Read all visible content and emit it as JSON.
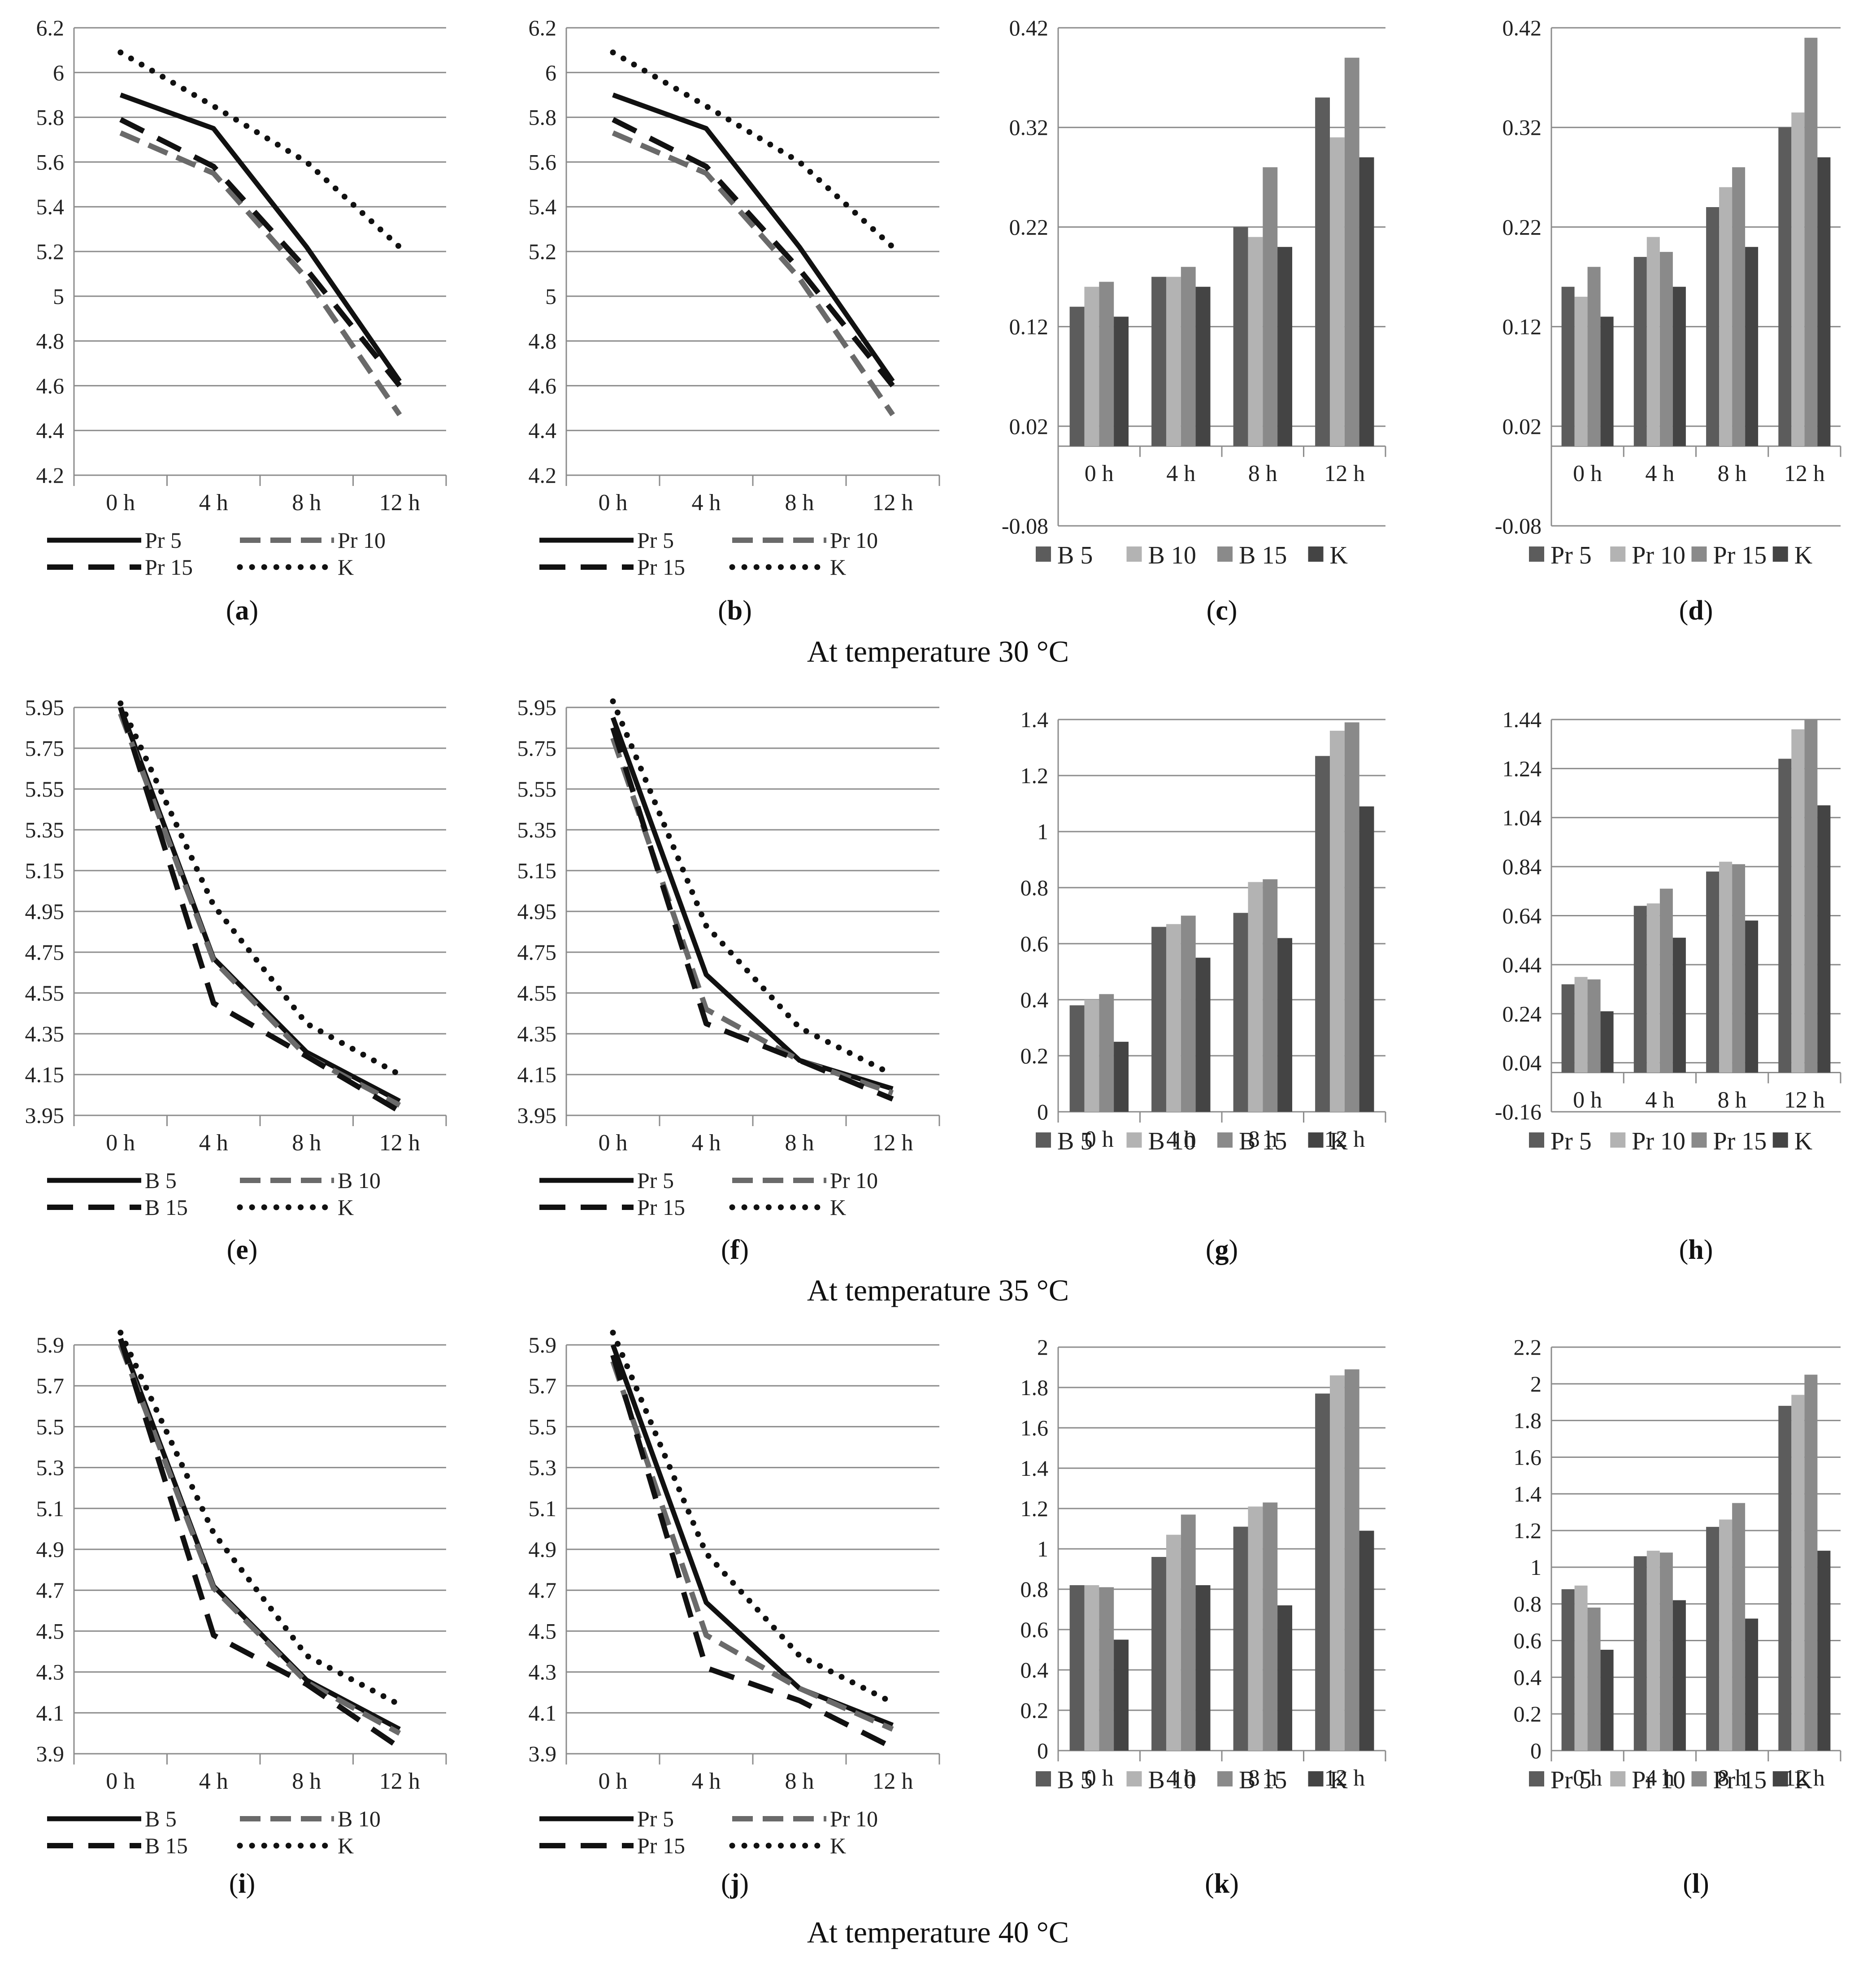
{
  "temperatures": [
    "At temperature 30 °C",
    "At temperature 35 °C",
    "At temperature 40 °C"
  ],
  "chart_data": [
    {
      "id": "a",
      "panel_label": "a",
      "type": "line",
      "categories": [
        "0 h",
        "4 h",
        "8 h",
        "12 h"
      ],
      "ylim": [
        4.2,
        6.2
      ],
      "yticks": [
        4.2,
        4.4,
        4.6,
        4.8,
        5,
        5.2,
        5.4,
        5.6,
        5.8,
        6,
        6.2
      ],
      "series": [
        {
          "name": "Pr 5",
          "style": "solid",
          "values": [
            5.9,
            5.75,
            5.22,
            4.62
          ]
        },
        {
          "name": "Pr 10",
          "style": "dashgray",
          "values": [
            5.73,
            5.55,
            5.08,
            4.47
          ]
        },
        {
          "name": "Pr 15",
          "style": "dash",
          "values": [
            5.79,
            5.58,
            5.12,
            4.6
          ]
        },
        {
          "name": "K",
          "style": "dot",
          "values": [
            6.09,
            5.85,
            5.6,
            5.22
          ]
        }
      ]
    },
    {
      "id": "b",
      "panel_label": "b",
      "type": "line",
      "categories": [
        "0 h",
        "4 h",
        "8 h",
        "12 h"
      ],
      "ylim": [
        4.2,
        6.2
      ],
      "yticks": [
        4.2,
        4.4,
        4.6,
        4.8,
        5,
        5.2,
        5.4,
        5.6,
        5.8,
        6,
        6.2
      ],
      "series": [
        {
          "name": "Pr 5",
          "style": "solid",
          "values": [
            5.9,
            5.75,
            5.22,
            4.62
          ]
        },
        {
          "name": "Pr 10",
          "style": "dashgray",
          "values": [
            5.73,
            5.55,
            5.08,
            4.47
          ]
        },
        {
          "name": "Pr 15",
          "style": "dash",
          "values": [
            5.79,
            5.58,
            5.12,
            4.6
          ]
        },
        {
          "name": "K",
          "style": "dot",
          "values": [
            6.09,
            5.85,
            5.6,
            5.22
          ]
        }
      ]
    },
    {
      "id": "c",
      "panel_label": "c",
      "type": "bar",
      "categories": [
        "0 h",
        "4 h",
        "8 h",
        "12 h"
      ],
      "ylim": [
        -0.08,
        0.42
      ],
      "yticks": [
        -0.08,
        0.02,
        0.12,
        0.22,
        0.32,
        0.42
      ],
      "series": [
        {
          "name": "B 5",
          "values": [
            0.14,
            0.17,
            0.22,
            0.35
          ]
        },
        {
          "name": "B 10",
          "values": [
            0.16,
            0.17,
            0.21,
            0.31
          ]
        },
        {
          "name": "B 15",
          "values": [
            0.165,
            0.18,
            0.28,
            0.39
          ]
        },
        {
          "name": "K",
          "values": [
            0.13,
            0.16,
            0.2,
            0.29
          ]
        }
      ]
    },
    {
      "id": "d",
      "panel_label": "d",
      "type": "bar",
      "categories": [
        "0 h",
        "4 h",
        "8 h",
        "12 h"
      ],
      "ylim": [
        -0.08,
        0.42
      ],
      "yticks": [
        -0.08,
        0.02,
        0.12,
        0.22,
        0.32,
        0.42
      ],
      "series": [
        {
          "name": "Pr 5",
          "values": [
            0.16,
            0.19,
            0.24,
            0.32
          ]
        },
        {
          "name": "Pr 10",
          "values": [
            0.15,
            0.21,
            0.26,
            0.335
          ]
        },
        {
          "name": "Pr 15",
          "values": [
            0.18,
            0.195,
            0.28,
            0.41
          ]
        },
        {
          "name": "K",
          "values": [
            0.13,
            0.16,
            0.2,
            0.29
          ]
        }
      ]
    },
    {
      "id": "e",
      "panel_label": "e",
      "type": "line",
      "categories": [
        "0 h",
        "4 h",
        "8 h",
        "12 h"
      ],
      "ylim": [
        3.95,
        5.95
      ],
      "yticks": [
        3.95,
        4.15,
        4.35,
        4.55,
        4.75,
        4.95,
        5.15,
        5.35,
        5.55,
        5.75,
        5.95
      ],
      "series": [
        {
          "name": "B 5",
          "style": "solid",
          "values": [
            5.95,
            4.72,
            4.26,
            4.02
          ]
        },
        {
          "name": "B 10",
          "style": "dashgray",
          "values": [
            5.92,
            4.71,
            4.24,
            4.0
          ]
        },
        {
          "name": "B 15",
          "style": "dash",
          "values": [
            5.95,
            4.5,
            4.24,
            3.97
          ]
        },
        {
          "name": "K",
          "style": "dot",
          "values": [
            5.97,
            4.98,
            4.4,
            4.15
          ]
        }
      ]
    },
    {
      "id": "f",
      "panel_label": "f",
      "type": "line",
      "categories": [
        "0 h",
        "4 h",
        "8 h",
        "12 h"
      ],
      "ylim": [
        3.95,
        5.95
      ],
      "yticks": [
        3.95,
        4.15,
        4.35,
        4.55,
        4.75,
        4.95,
        5.15,
        5.35,
        5.55,
        5.75,
        5.95
      ],
      "series": [
        {
          "name": "Pr 5",
          "style": "solid",
          "values": [
            5.9,
            4.64,
            4.22,
            4.08
          ]
        },
        {
          "name": "Pr 10",
          "style": "dashgray",
          "values": [
            5.8,
            4.47,
            4.22,
            4.06
          ]
        },
        {
          "name": "Pr 15",
          "style": "dash",
          "values": [
            5.85,
            4.4,
            4.22,
            4.03
          ]
        },
        {
          "name": "K",
          "style": "dot",
          "values": [
            5.98,
            4.88,
            4.38,
            4.15
          ]
        }
      ]
    },
    {
      "id": "g",
      "panel_label": "g",
      "type": "bar",
      "categories": [
        "0 h",
        "4 h",
        "8 h",
        "12 h"
      ],
      "ylim": [
        0,
        1.4
      ],
      "yticks": [
        0,
        0.2,
        0.4,
        0.6,
        0.8,
        1,
        1.2,
        1.4
      ],
      "series": [
        {
          "name": "B 5",
          "values": [
            0.38,
            0.66,
            0.71,
            1.27
          ]
        },
        {
          "name": "B 10",
          "values": [
            0.4,
            0.67,
            0.82,
            1.36
          ]
        },
        {
          "name": "B 15",
          "values": [
            0.42,
            0.7,
            0.83,
            1.39
          ]
        },
        {
          "name": "K",
          "values": [
            0.25,
            0.55,
            0.62,
            1.09
          ]
        }
      ]
    },
    {
      "id": "h",
      "panel_label": "h",
      "type": "bar",
      "categories": [
        "0 h",
        "4 h",
        "8 h",
        "12 h"
      ],
      "ylim": [
        -0.16,
        1.44
      ],
      "yticks": [
        -0.16,
        0.04,
        0.24,
        0.44,
        0.64,
        0.84,
        1.04,
        1.24,
        1.44
      ],
      "series": [
        {
          "name": "Pr 5",
          "values": [
            0.36,
            0.68,
            0.82,
            1.28
          ]
        },
        {
          "name": "Pr 10",
          "values": [
            0.39,
            0.69,
            0.86,
            1.4
          ]
        },
        {
          "name": "Pr 15",
          "values": [
            0.38,
            0.75,
            0.85,
            1.44
          ]
        },
        {
          "name": "K",
          "values": [
            0.25,
            0.55,
            0.62,
            1.09
          ]
        }
      ]
    },
    {
      "id": "i",
      "panel_label": "i",
      "type": "line",
      "categories": [
        "0 h",
        "4 h",
        "8 h",
        "12 h"
      ],
      "ylim": [
        3.9,
        5.9
      ],
      "yticks": [
        3.9,
        4.1,
        4.3,
        4.5,
        4.7,
        4.9,
        5.1,
        5.3,
        5.5,
        5.7,
        5.9
      ],
      "series": [
        {
          "name": "B 5",
          "style": "solid",
          "values": [
            5.93,
            4.72,
            4.26,
            4.02
          ]
        },
        {
          "name": "B 10",
          "style": "dashgray",
          "values": [
            5.9,
            4.71,
            4.25,
            4.0
          ]
        },
        {
          "name": "B 15",
          "style": "dash",
          "values": [
            5.93,
            4.48,
            4.24,
            3.93
          ]
        },
        {
          "name": "K",
          "style": "dot",
          "values": [
            5.96,
            4.98,
            4.38,
            4.14
          ]
        }
      ]
    },
    {
      "id": "j",
      "panel_label": "j",
      "type": "line",
      "categories": [
        "0 h",
        "4 h",
        "8 h",
        "12 h"
      ],
      "ylim": [
        3.9,
        5.9
      ],
      "yticks": [
        3.9,
        4.1,
        4.3,
        4.5,
        4.7,
        4.9,
        5.1,
        5.3,
        5.5,
        5.7,
        5.9
      ],
      "series": [
        {
          "name": "Pr 5",
          "style": "solid",
          "values": [
            5.9,
            4.64,
            4.22,
            4.04
          ]
        },
        {
          "name": "Pr 10",
          "style": "dashgray",
          "values": [
            5.82,
            4.48,
            4.22,
            4.02
          ]
        },
        {
          "name": "Pr 15",
          "style": "dash",
          "values": [
            5.85,
            4.32,
            4.16,
            3.93
          ]
        },
        {
          "name": "K",
          "style": "dot",
          "values": [
            5.96,
            4.88,
            4.38,
            4.15
          ]
        }
      ]
    },
    {
      "id": "k",
      "panel_label": "k",
      "type": "bar",
      "categories": [
        "0 h",
        "4 h",
        "8 h",
        "12 h"
      ],
      "ylim": [
        0,
        2
      ],
      "yticks": [
        0,
        0.2,
        0.4,
        0.6,
        0.8,
        1,
        1.2,
        1.4,
        1.6,
        1.8,
        2
      ],
      "series": [
        {
          "name": "B 5",
          "values": [
            0.82,
            0.96,
            1.11,
            1.77
          ]
        },
        {
          "name": "B 10",
          "values": [
            0.82,
            1.07,
            1.21,
            1.86
          ]
        },
        {
          "name": "B 15",
          "values": [
            0.81,
            1.17,
            1.23,
            1.89
          ]
        },
        {
          "name": "K",
          "values": [
            0.55,
            0.82,
            0.72,
            1.09
          ]
        }
      ]
    },
    {
      "id": "l",
      "panel_label": "l",
      "type": "bar",
      "categories": [
        "0 h",
        "4 h",
        "8 h",
        "12 h"
      ],
      "ylim": [
        0,
        2.2
      ],
      "yticks": [
        0,
        0.2,
        0.4,
        0.6,
        0.8,
        1,
        1.2,
        1.4,
        1.6,
        1.8,
        2,
        2.2
      ],
      "series": [
        {
          "name": "Pr 5",
          "values": [
            0.88,
            1.06,
            1.22,
            1.88
          ]
        },
        {
          "name": "Pr 10",
          "values": [
            0.9,
            1.09,
            1.26,
            1.94
          ]
        },
        {
          "name": "Pr 15",
          "values": [
            0.78,
            1.08,
            1.35,
            2.05
          ]
        },
        {
          "name": "K",
          "values": [
            0.55,
            0.82,
            0.72,
            1.09
          ]
        }
      ]
    }
  ]
}
